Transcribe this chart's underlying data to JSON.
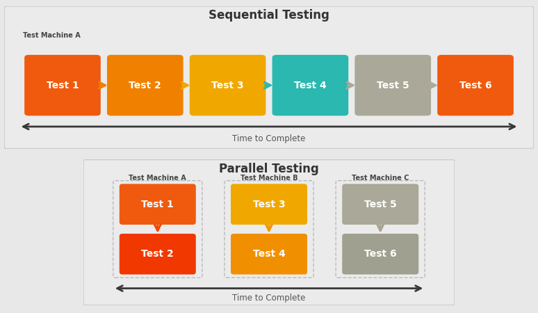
{
  "fig_bg": "#e8e8e8",
  "panel_bg": "#ebebeb",
  "panel_border": "#cccccc",
  "seq_title": "Sequential Testing",
  "par_title": "Parallel Testing",
  "seq_machine_label": "Test Machine A",
  "par_machine_labels": [
    "Test Machine A",
    "Test Machine B",
    "Test Machine C"
  ],
  "time_label": "Time to Complete",
  "seq_boxes": [
    {
      "label": "Test 1",
      "color": "#f05a0e"
    },
    {
      "label": "Test 2",
      "color": "#f08000"
    },
    {
      "label": "Test 3",
      "color": "#f0a800"
    },
    {
      "label": "Test 4",
      "color": "#2ab8b0"
    },
    {
      "label": "Test 5",
      "color": "#aaa898"
    },
    {
      "label": "Test 6",
      "color": "#f05a0e"
    }
  ],
  "seq_arrow_colors": [
    "#f08000",
    "#f0a800",
    "#2ab8b0",
    "#aaa898",
    "#b0a898"
  ],
  "par_cols": [
    {
      "boxes": [
        {
          "label": "Test 1",
          "color": "#f05a0e"
        },
        {
          "label": "Test 2",
          "color": "#f03800"
        }
      ],
      "arrow_color": "#f04800"
    },
    {
      "boxes": [
        {
          "label": "Test 3",
          "color": "#f0a800"
        },
        {
          "label": "Test 4",
          "color": "#f09000"
        }
      ],
      "arrow_color": "#f09800"
    },
    {
      "boxes": [
        {
          "label": "Test 5",
          "color": "#aaa898"
        },
        {
          "label": "Test 6",
          "color": "#a0a090"
        }
      ],
      "arrow_color": "#a8a490"
    }
  ],
  "arrow_color": "#383838",
  "col_border_color": "#bbbbbb",
  "text_dark": "#333333",
  "text_mid": "#555555"
}
